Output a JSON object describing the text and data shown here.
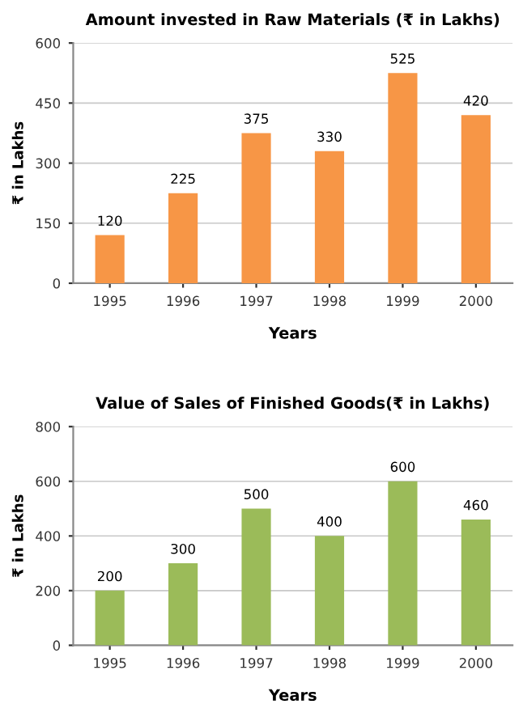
{
  "chart_data": [
    {
      "type": "bar",
      "title": "Amount invested in Raw Materials (₹ in Lakhs)",
      "xlabel": "Years",
      "ylabel": "₹ in Lakhs",
      "categories": [
        "1995",
        "1996",
        "1997",
        "1998",
        "1999",
        "2000"
      ],
      "values": [
        120,
        225,
        375,
        330,
        525,
        420
      ],
      "color": "#f79646",
      "ylim": [
        0,
        600
      ],
      "yticks": [
        0,
        150,
        300,
        450,
        600
      ],
      "grid": "y",
      "data_labels": true
    },
    {
      "type": "bar",
      "title": "Value of Sales of Finished Goods(₹ in Lakhs)",
      "xlabel": "Years",
      "ylabel": "₹ in Lakhs",
      "categories": [
        "1995",
        "1996",
        "1997",
        "1998",
        "1999",
        "2000"
      ],
      "values": [
        200,
        300,
        500,
        400,
        600,
        460
      ],
      "color": "#9bbb59",
      "ylim": [
        0,
        800
      ],
      "yticks": [
        0,
        200,
        400,
        600,
        800
      ],
      "grid": "y",
      "data_labels": true
    }
  ]
}
